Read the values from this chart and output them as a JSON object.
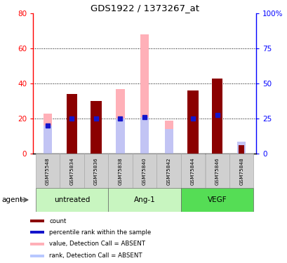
{
  "title": "GDS1922 / 1373267_at",
  "samples": [
    "GSM75548",
    "GSM75834",
    "GSM75836",
    "GSM75838",
    "GSM75840",
    "GSM75842",
    "GSM75844",
    "GSM75846",
    "GSM75848"
  ],
  "count_values": [
    0,
    34,
    30,
    0,
    0,
    0,
    36,
    43,
    5
  ],
  "percentile_values": [
    16,
    20,
    20,
    20,
    21,
    0,
    20,
    22,
    0
  ],
  "pink_bar_values": [
    23,
    0,
    0,
    37,
    68,
    19,
    0,
    0,
    7
  ],
  "light_blue_bar_values": [
    16,
    0,
    0,
    20,
    21,
    14,
    0,
    0,
    7
  ],
  "absent_flags": [
    true,
    false,
    false,
    true,
    true,
    true,
    false,
    false,
    true
  ],
  "count_color": "#8b0000",
  "percentile_color": "#1515cc",
  "pink_color": "#ffb0b8",
  "light_blue_color": "#b8c8ff",
  "ylim_left": [
    0,
    80
  ],
  "ylim_right": [
    0,
    100
  ],
  "yticks_left": [
    0,
    20,
    40,
    60,
    80
  ],
  "yticks_right": [
    0,
    25,
    50,
    75,
    100
  ],
  "ytick_labels_right": [
    "0",
    "25",
    "50",
    "75",
    "100%"
  ],
  "groups": [
    {
      "label": "untreated",
      "start": 0,
      "end": 2,
      "color": "#c8f5c0"
    },
    {
      "label": "Ang-1",
      "start": 3,
      "end": 5,
      "color": "#c8f5c0"
    },
    {
      "label": "VEGF",
      "start": 6,
      "end": 8,
      "color": "#55dd55"
    }
  ],
  "sample_box_color": "#d0d0d0",
  "legend_items": [
    {
      "label": "count",
      "color": "#8b0000"
    },
    {
      "label": "percentile rank within the sample",
      "color": "#1515cc"
    },
    {
      "label": "value, Detection Call = ABSENT",
      "color": "#ffb0b8"
    },
    {
      "label": "rank, Detection Call = ABSENT",
      "color": "#b8c8ff"
    }
  ],
  "bar_width": 0.45,
  "pink_bar_width": 0.35
}
